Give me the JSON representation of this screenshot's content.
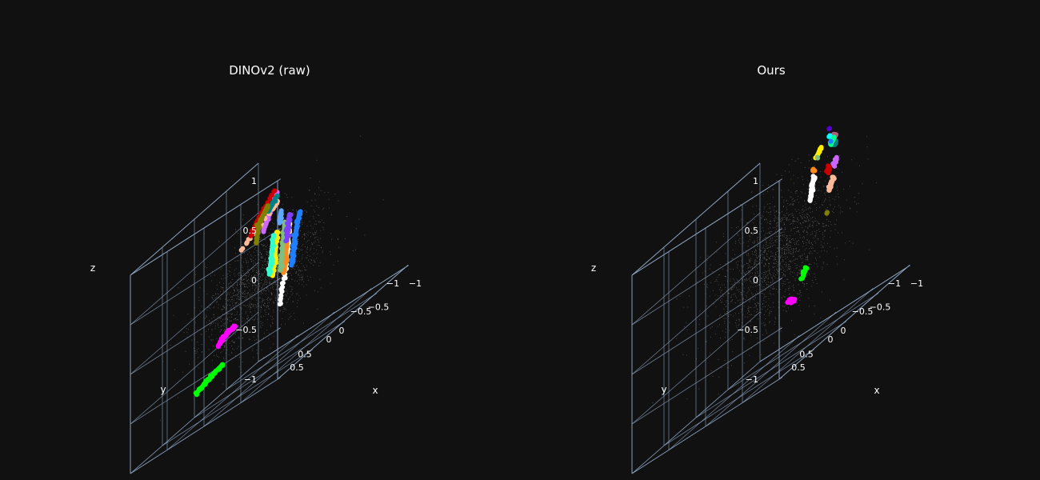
{
  "chart_data": [
    {
      "type": "scatter",
      "title": "DINOv2 (raw)",
      "xlabel": "x",
      "ylabel": "y",
      "zlabel": "z",
      "xlim": [
        -1,
        1
      ],
      "ylim": [
        -1,
        1
      ],
      "zlim": [
        -1,
        1
      ],
      "xticks": [
        -1,
        -0.5,
        0,
        0.5
      ],
      "yticks": [
        -1,
        -0.5,
        0,
        0.5
      ],
      "zticks": [
        -1,
        -0.5,
        0,
        0.5,
        1
      ],
      "xtick_labels": [
        "−1",
        "−0.5",
        "0",
        "0.5"
      ],
      "ytick_labels": [
        "−1",
        "−0.5",
        "0",
        "0.5"
      ],
      "ztick_labels": [
        "−1",
        "−0.5",
        "0",
        "0.5",
        "1"
      ],
      "grid": true,
      "background_cloud": {
        "color": "#9a9a9a",
        "center": [
          0.0,
          0.1,
          -0.05
        ],
        "spread": [
          0.55,
          0.55,
          0.45
        ]
      },
      "series": [
        {
          "color": "#1e7fff",
          "points": [
            [
              -0.62,
              0.22,
              0.42
            ],
            [
              -0.6,
              0.24,
              0.3
            ],
            [
              -0.58,
              0.25,
              0.18
            ],
            [
              -0.57,
              0.26,
              0.06
            ],
            [
              -0.56,
              0.27,
              -0.04
            ]
          ]
        },
        {
          "color": "#ffffff",
          "points": [
            [
              -0.55,
              0.3,
              0.38
            ],
            [
              -0.54,
              0.31,
              0.22
            ],
            [
              -0.53,
              0.32,
              0.08
            ],
            [
              -0.52,
              0.33,
              -0.05
            ],
            [
              -0.49,
              0.38,
              -0.35
            ]
          ]
        },
        {
          "color": "#ff8a1a",
          "points": [
            [
              -0.5,
              0.26,
              0.36
            ],
            [
              -0.49,
              0.27,
              0.2
            ],
            [
              -0.48,
              0.28,
              0.05
            ],
            [
              -0.47,
              0.29,
              -0.06
            ]
          ]
        },
        {
          "color": "#7fbf7f",
          "points": [
            [
              -0.42,
              0.22,
              0.42
            ],
            [
              -0.41,
              0.23,
              0.28
            ],
            [
              -0.4,
              0.24,
              0.12
            ],
            [
              -0.39,
              0.25,
              -0.02
            ]
          ]
        },
        {
          "color": "#7f3fff",
          "points": [
            [
              -0.45,
              0.18,
              0.46
            ],
            [
              -0.44,
              0.19,
              0.34
            ],
            [
              -0.43,
              0.2,
              0.22
            ]
          ]
        },
        {
          "color": "#ffee00",
          "points": [
            [
              -0.25,
              0.15,
              0.36
            ],
            [
              -0.24,
              0.16,
              0.22
            ],
            [
              -0.23,
              0.17,
              0.08
            ],
            [
              -0.22,
              0.18,
              -0.05
            ]
          ]
        },
        {
          "color": "#33ffcc",
          "points": [
            [
              -0.16,
              0.1,
              0.34
            ],
            [
              -0.15,
              0.11,
              0.2
            ],
            [
              -0.14,
              0.12,
              0.06
            ],
            [
              -0.13,
              0.13,
              -0.02
            ]
          ]
        },
        {
          "color": "#5fa8ff",
          "points": [
            [
              -0.22,
              0.05,
              0.52
            ],
            [
              -0.21,
              0.06,
              0.42
            ]
          ]
        },
        {
          "color": "#cc66ff",
          "points": [
            [
              0.05,
              -0.2,
              0.7
            ],
            [
              0.1,
              -0.15,
              0.55
            ],
            [
              0.15,
              -0.1,
              0.42
            ]
          ]
        },
        {
          "color": "#ffbb99",
          "points": [
            [
              0.0,
              -0.15,
              0.62
            ],
            [
              0.04,
              -0.12,
              0.58
            ],
            [
              0.3,
              0.05,
              0.4
            ]
          ]
        },
        {
          "color": "#008080",
          "points": [
            [
              0.08,
              -0.22,
              0.66
            ],
            [
              0.14,
              -0.18,
              0.58
            ]
          ]
        },
        {
          "color": "#cc0000",
          "points": [
            [
              0.18,
              -0.3,
              0.72
            ],
            [
              0.3,
              -0.18,
              0.55
            ],
            [
              0.34,
              -0.12,
              0.45
            ]
          ]
        },
        {
          "color": "#808000",
          "points": [
            [
              0.25,
              -0.28,
              0.62
            ],
            [
              0.3,
              -0.2,
              0.5
            ],
            [
              0.2,
              -0.05,
              0.35
            ]
          ]
        },
        {
          "color": "#ff00ff",
          "points": [
            [
              0.1,
              0.4,
              -0.28
            ],
            [
              0.2,
              0.35,
              -0.3
            ],
            [
              0.3,
              0.3,
              -0.32
            ],
            [
              0.4,
              0.25,
              -0.35
            ],
            [
              0.5,
              0.2,
              -0.4
            ]
          ]
        },
        {
          "color": "#00ff00",
          "points": [
            [
              0.05,
              0.65,
              -0.55
            ],
            [
              0.15,
              0.68,
              -0.58
            ],
            [
              0.25,
              0.7,
              -0.62
            ],
            [
              0.35,
              0.72,
              -0.66
            ]
          ]
        }
      ]
    },
    {
      "type": "scatter",
      "title": "Ours",
      "xlabel": "x",
      "ylabel": "y",
      "zlabel": "z",
      "xlim": [
        -1,
        1
      ],
      "ylim": [
        -1,
        1
      ],
      "zlim": [
        -1,
        1
      ],
      "xticks": [
        -1,
        -0.5,
        0,
        0.5
      ],
      "yticks": [
        -1,
        -0.5,
        0,
        0.5
      ],
      "zticks": [
        -1,
        -0.5,
        0,
        0.5,
        1
      ],
      "xtick_labels": [
        "−1",
        "−0.5",
        "0",
        "0.5"
      ],
      "ytick_labels": [
        "−1",
        "−0.5",
        "0",
        "0.5"
      ],
      "ztick_labels": [
        "−1",
        "−0.5",
        "0",
        "0.5",
        "1"
      ],
      "grid": true,
      "background_cloud": {
        "color": "#9a9a9a",
        "center": [
          0.0,
          -0.1,
          0.1
        ],
        "spread": [
          0.55,
          0.6,
          0.55
        ]
      },
      "series": [
        {
          "color": "#b05b7f",
          "points": [
            [
              -0.55,
              -0.4,
              0.88
            ],
            [
              -0.5,
              -0.42,
              0.9
            ]
          ]
        },
        {
          "color": "#5fa8ff",
          "points": [
            [
              -0.42,
              -0.52,
              0.86
            ],
            [
              -0.38,
              -0.55,
              0.82
            ]
          ]
        },
        {
          "color": "#008080",
          "points": [
            [
              -0.58,
              -0.36,
              0.82
            ],
            [
              -0.52,
              -0.4,
              0.8
            ]
          ]
        },
        {
          "color": "#cc66ff",
          "points": [
            [
              -0.72,
              -0.22,
              0.68
            ],
            [
              -0.7,
              -0.2,
              0.62
            ]
          ]
        },
        {
          "color": "#cc0000",
          "points": [
            [
              -0.5,
              -0.35,
              0.62
            ],
            [
              -0.45,
              -0.4,
              0.55
            ]
          ]
        },
        {
          "color": "#ffbb99",
          "points": [
            [
              -0.78,
              -0.1,
              0.52
            ],
            [
              -0.76,
              -0.06,
              0.42
            ]
          ]
        },
        {
          "color": "#808000",
          "points": [
            [
              -0.82,
              0.05,
              0.22
            ]
          ]
        },
        {
          "color": "#00ff88",
          "points": [
            [
              -0.25,
              -0.72,
              0.82
            ],
            [
              -0.22,
              -0.7,
              0.78
            ]
          ]
        },
        {
          "color": "#1e7fff",
          "points": [
            [
              -0.18,
              -0.75,
              0.8
            ]
          ]
        },
        {
          "color": "#5500cc",
          "points": [
            [
              -0.05,
              -0.88,
              0.92
            ]
          ]
        },
        {
          "color": "#00ffff",
          "points": [
            [
              -0.08,
              -0.85,
              0.85
            ]
          ]
        },
        {
          "color": "#ffee00",
          "points": [
            [
              0.08,
              -0.9,
              0.78
            ],
            [
              0.12,
              -0.88,
              0.72
            ]
          ]
        },
        {
          "color": "#7fbf7f",
          "points": [
            [
              0.15,
              -0.92,
              0.7
            ]
          ]
        },
        {
          "color": "#ff8a1a",
          "points": [
            [
              0.1,
              -0.8,
              0.62
            ],
            [
              0.14,
              -0.85,
              0.6
            ]
          ]
        },
        {
          "color": "#ffffff",
          "points": [
            [
              -0.12,
              -0.55,
              0.58
            ],
            [
              -0.14,
              -0.5,
              0.48
            ],
            [
              -0.16,
              -0.45,
              0.38
            ]
          ]
        },
        {
          "color": "#00ff00",
          "points": [
            [
              -0.8,
              0.35,
              -0.15
            ],
            [
              -0.78,
              0.38,
              -0.22
            ]
          ]
        },
        {
          "color": "#ff00ff",
          "points": [
            [
              -0.68,
              0.4,
              -0.4
            ],
            [
              -0.62,
              0.38,
              -0.38
            ],
            [
              -0.58,
              0.36,
              -0.36
            ]
          ]
        }
      ]
    }
  ]
}
